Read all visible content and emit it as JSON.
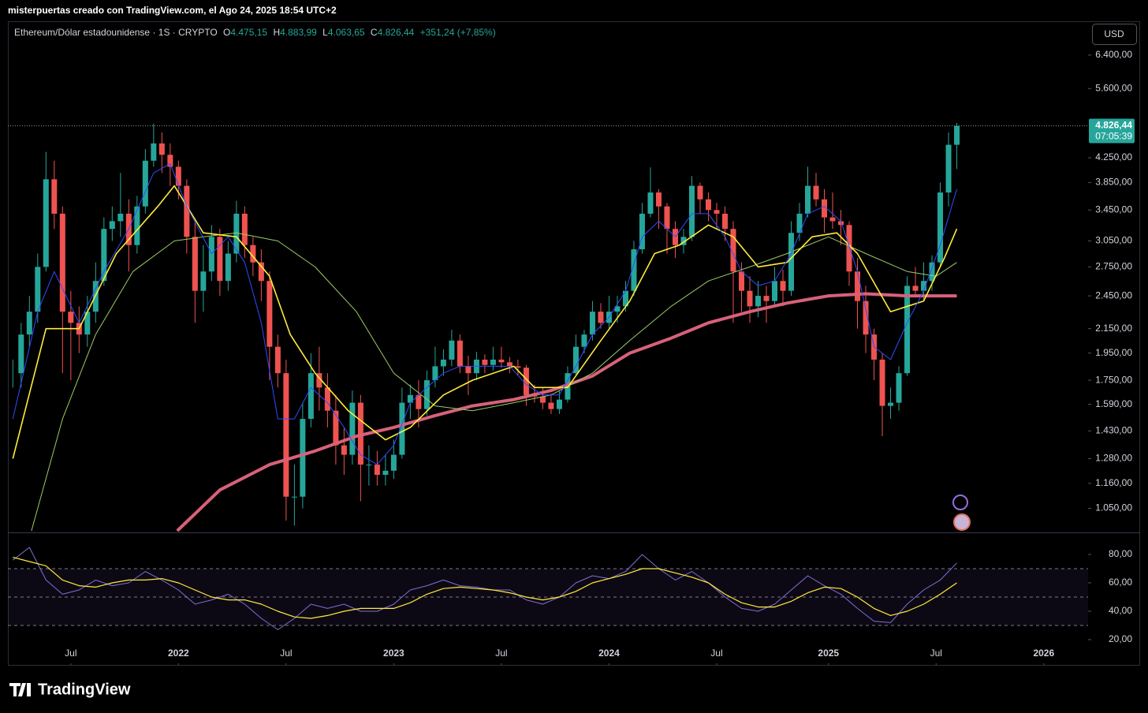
{
  "header": {
    "caption": "misterpuertas creado con TradingView.com, el Ago 24, 2025 18:54 UTC+2"
  },
  "legend": {
    "symbol": "Ethereum/Dólar estadounidense · 1S · CRYPTO",
    "o": "O",
    "open": "4.475,15",
    "h": "H",
    "high": "4.883,99",
    "l": "L",
    "low": "4.063,65",
    "c": "C",
    "close": "4.826,44",
    "change": "+351,24 (+7,85%)"
  },
  "currency": "USD",
  "brand": "TradingView",
  "chart_data": [
    {
      "type": "candlestick",
      "log_scale": true,
      "grid": false,
      "xlim": [
        -15.2,
        245.7
      ],
      "ylim": [
        954,
        7300
      ],
      "yticks": [
        {
          "value": 6400,
          "label": "6.400,00"
        },
        {
          "value": 5600,
          "label": "5.600,00"
        },
        {
          "value": 4250,
          "label": "4.250,00"
        },
        {
          "value": 3850,
          "label": "3.850,00"
        },
        {
          "value": 3450,
          "label": "3.450,00"
        },
        {
          "value": 3050,
          "label": "3.050,00"
        },
        {
          "value": 2750,
          "label": "2.750,00"
        },
        {
          "value": 2450,
          "label": "2.450,00"
        },
        {
          "value": 2150,
          "label": "2.150,00"
        },
        {
          "value": 1950,
          "label": "1.950,00"
        },
        {
          "value": 1750,
          "label": "1.750,00"
        },
        {
          "value": 1590,
          "label": "1.590,00"
        },
        {
          "value": 1430,
          "label": "1.430,00"
        },
        {
          "value": 1280,
          "label": "1.280,00"
        },
        {
          "value": 1160,
          "label": "1.160,00"
        },
        {
          "value": 1050,
          "label": "1.050,00"
        }
      ],
      "last_price": {
        "value": 4826.44,
        "label": "4.826,44"
      },
      "countdown": "07:05:39",
      "up_color": "#26a69a",
      "down_color": "#ef5350",
      "candles": {
        "x": [
          -14,
          -12,
          -10,
          -8,
          -6,
          -4,
          -2,
          0,
          2,
          4,
          6,
          8,
          10,
          12,
          14,
          16,
          18,
          20,
          22,
          24,
          26,
          28,
          30,
          32,
          34,
          36,
          38,
          40,
          42,
          44,
          46,
          48,
          50,
          52,
          54,
          56,
          58,
          60,
          62,
          64,
          66,
          68,
          70,
          72,
          74,
          76,
          78,
          80,
          82,
          84,
          86,
          88,
          90,
          92,
          94,
          96,
          98,
          100,
          102,
          104,
          106,
          108,
          110,
          112,
          114,
          116,
          118,
          120,
          122,
          124,
          126,
          128,
          130,
          132,
          134,
          136,
          138,
          140,
          142,
          144,
          146,
          148,
          150,
          152,
          154,
          156,
          158,
          160,
          162,
          164,
          166,
          168,
          170,
          172,
          174,
          176,
          178,
          180,
          182,
          184,
          186,
          188,
          190,
          192,
          194,
          196,
          198,
          200,
          202,
          204,
          206,
          208,
          210,
          212,
          214
        ],
        "close": [
          1800,
          2100,
          2300,
          2750,
          3900,
          3400,
          2300,
          2200,
          2100,
          2300,
          2600,
          3200,
          3300,
          3400,
          3000,
          3500,
          4200,
          4500,
          4300,
          4100,
          3800,
          3100,
          2500,
          2700,
          3100,
          2600,
          2900,
          3400,
          3000,
          2800,
          2600,
          2000,
          1800,
          1100,
          1100,
          1500,
          1800,
          1700,
          1550,
          1350,
          1300,
          1600,
          1250,
          1250,
          1200,
          1220,
          1300,
          1600,
          1650,
          1560,
          1750,
          1850,
          1900,
          2050,
          1850,
          1800,
          1900,
          1860,
          1900,
          1880,
          1850,
          1840,
          1650,
          1640,
          1600,
          1560,
          1620,
          1800,
          2000,
          2100,
          2300,
          2200,
          2300,
          2350,
          2500,
          2950,
          3400,
          3700,
          3500,
          3200,
          3000,
          3100,
          3800,
          3600,
          3450,
          3400,
          3200,
          2700,
          2500,
          2350,
          2450,
          2400,
          2600,
          2500,
          3150,
          3400,
          3800,
          3600,
          3350,
          3300,
          3250,
          2700,
          2400,
          2100,
          1900,
          1580,
          1600,
          1800,
          2550,
          2500,
          2600,
          2800,
          3700,
          4475.15,
          4826.44
        ],
        "high": [
          1900,
          2200,
          2450,
          2900,
          4350,
          4200,
          3500,
          2500,
          2350,
          2450,
          2800,
          3350,
          3500,
          4000,
          3600,
          3650,
          4400,
          4870,
          4700,
          4500,
          4200,
          3900,
          3300,
          3000,
          3250,
          3200,
          3050,
          3580,
          3500,
          3100,
          2950,
          2700,
          2100,
          1900,
          1250,
          1600,
          1950,
          2000,
          1800,
          1650,
          1450,
          1680,
          1650,
          1350,
          1320,
          1300,
          1380,
          1700,
          1720,
          1750,
          1820,
          2000,
          1980,
          2140,
          2100,
          1930,
          1960,
          1940,
          2000,
          2000,
          1920,
          1900,
          1860,
          1720,
          1700,
          1660,
          1680,
          1850,
          2100,
          2140,
          2400,
          2380,
          2450,
          2450,
          2600,
          3050,
          3550,
          4090,
          3750,
          3550,
          3300,
          3200,
          3950,
          3850,
          3700,
          3550,
          3500,
          3300,
          2800,
          2650,
          2600,
          2550,
          2750,
          2720,
          3300,
          3550,
          4100,
          4000,
          3750,
          3700,
          3450,
          3300,
          2850,
          2550,
          2150,
          1950,
          1700,
          1850,
          2650,
          2750,
          2800,
          2880,
          3850,
          4700,
          4883.99
        ],
        "low": [
          1700,
          1700,
          2000,
          2200,
          2700,
          3200,
          1800,
          1750,
          1950,
          2000,
          2200,
          2550,
          3050,
          3100,
          2700,
          2900,
          3400,
          4100,
          4000,
          3800,
          3600,
          2900,
          2200,
          2300,
          2600,
          2450,
          2500,
          2800,
          2850,
          2650,
          2400,
          1750,
          1700,
          1000,
          980,
          1050,
          1450,
          1550,
          1450,
          1250,
          1200,
          1250,
          1080,
          1150,
          1150,
          1150,
          1180,
          1280,
          1500,
          1450,
          1520,
          1700,
          1780,
          1850,
          1800,
          1650,
          1750,
          1800,
          1820,
          1840,
          1800,
          1780,
          1580,
          1600,
          1560,
          1530,
          1530,
          1600,
          1780,
          1950,
          2050,
          2150,
          2150,
          2200,
          2300,
          2450,
          2900,
          3350,
          3200,
          2900,
          2850,
          2900,
          3050,
          3400,
          3300,
          3200,
          3050,
          2200,
          2300,
          2200,
          2250,
          2200,
          2350,
          2350,
          2450,
          3050,
          3350,
          3500,
          3150,
          3200,
          3000,
          2550,
          2150,
          1950,
          1750,
          1400,
          1500,
          1550,
          1780,
          2450,
          2400,
          2500,
          2750,
          3500,
          4063.65
        ]
      },
      "series": [
        {
          "color": "#d8617a",
          "width": 4,
          "x": [
            25.7,
            36,
            48,
            59,
            69,
            78,
            88,
            97,
            107,
            116,
            126,
            135,
            145,
            154,
            164,
            173,
            183,
            192,
            202,
            214
          ],
          "values": [
            960,
            1130,
            1250,
            1320,
            1400,
            1450,
            1520,
            1580,
            1620,
            1680,
            1780,
            1950,
            2070,
            2200,
            2300,
            2380,
            2450,
            2470,
            2450,
            2450
          ]
        },
        {
          "color": "#9ccc65",
          "width": 1,
          "x": [
            -9.5,
            -2,
            6,
            15,
            25,
            32,
            40,
            50,
            59,
            69,
            78,
            88,
            97,
            107,
            116,
            126,
            135,
            145,
            154,
            164,
            173,
            183,
            192,
            202,
            209,
            214
          ],
          "values": [
            960,
            1500,
            2100,
            2700,
            3050,
            3100,
            3150,
            3050,
            2750,
            2300,
            1800,
            1580,
            1550,
            1600,
            1650,
            1800,
            2050,
            2350,
            2600,
            2750,
            2900,
            3100,
            2900,
            2700,
            2650,
            2800
          ]
        },
        {
          "color": "#ffeb3b",
          "width": 1.6,
          "x": [
            -14,
            -6,
            2,
            11,
            21,
            25,
            32,
            40,
            48,
            53,
            59,
            67,
            76,
            82,
            90,
            97,
            107,
            112,
            120,
            128,
            135,
            141,
            147,
            154,
            160,
            166,
            173,
            179,
            185,
            190,
            198,
            206,
            211,
            214
          ],
          "values": [
            1280,
            2150,
            2150,
            2900,
            3500,
            3800,
            3150,
            3100,
            2650,
            2100,
            1800,
            1550,
            1380,
            1450,
            1650,
            1750,
            1850,
            1700,
            1700,
            2050,
            2400,
            2900,
            3000,
            3250,
            3100,
            2750,
            2800,
            3100,
            3150,
            2900,
            2300,
            2400,
            2850,
            3200
          ]
        },
        {
          "color": "#2f4cff",
          "width": 1,
          "x": [
            -14,
            -8,
            -4,
            2,
            8,
            14,
            20,
            24,
            28,
            34,
            38,
            42,
            46,
            50,
            54,
            58,
            62,
            66,
            70,
            74,
            78,
            82,
            86,
            90,
            94,
            98,
            102,
            106,
            110,
            114,
            118,
            122,
            126,
            130,
            134,
            138,
            142,
            146,
            150,
            154,
            158,
            162,
            166,
            170,
            174,
            178,
            182,
            186,
            190,
            194,
            198,
            202,
            206,
            210,
            214
          ],
          "values": [
            1500,
            2300,
            2700,
            2200,
            2700,
            3200,
            4000,
            4150,
            3500,
            2900,
            3100,
            2800,
            2200,
            1500,
            1500,
            1700,
            1600,
            1450,
            1300,
            1250,
            1350,
            1600,
            1700,
            1800,
            1850,
            1850,
            1850,
            1850,
            1720,
            1650,
            1650,
            1850,
            2100,
            2250,
            2500,
            3100,
            3300,
            3100,
            3400,
            3400,
            3100,
            2700,
            2550,
            2600,
            2900,
            3400,
            3500,
            3300,
            2700,
            2000,
            1900,
            2200,
            2500,
            3000,
            3750
          ]
        }
      ]
    },
    {
      "type": "line",
      "log_scale": false,
      "xlim": [
        -15.2,
        245.7
      ],
      "ylim": [
        2.2,
        95
      ],
      "yticks": [
        {
          "value": 80,
          "label": "80,00"
        },
        {
          "value": 60,
          "label": "60,00"
        },
        {
          "value": 40,
          "label": "40,00"
        },
        {
          "value": 20,
          "label": "20,00"
        }
      ],
      "xticks": [
        {
          "value": 0,
          "label": "Jul"
        },
        {
          "value": 26,
          "label": "2022"
        },
        {
          "value": 52,
          "label": "Jul"
        },
        {
          "value": 78,
          "label": "2023"
        },
        {
          "value": 104,
          "label": "Jul"
        },
        {
          "value": 130,
          "label": "2024"
        },
        {
          "value": 156,
          "label": "Jul"
        },
        {
          "value": 183,
          "label": "2025"
        },
        {
          "value": 209,
          "label": "Jul"
        },
        {
          "value": 235,
          "label": "2026"
        }
      ],
      "levels": [
        70,
        50,
        30
      ],
      "band_color": "#7e57c2",
      "x": [
        -14,
        -10,
        -6,
        -2,
        2,
        6,
        10,
        14,
        18,
        22,
        26,
        30,
        34,
        38,
        42,
        46,
        50,
        54,
        58,
        62,
        66,
        70,
        74,
        78,
        82,
        86,
        90,
        94,
        98,
        102,
        106,
        110,
        114,
        118,
        122,
        126,
        130,
        134,
        138,
        142,
        146,
        150,
        154,
        158,
        162,
        166,
        170,
        174,
        178,
        182,
        186,
        190,
        194,
        198,
        202,
        206,
        210,
        214
      ],
      "series": [
        {
          "color": "#7e6fd8",
          "width": 1,
          "values": [
            76,
            85,
            62,
            52,
            55,
            62,
            58,
            60,
            68,
            62,
            55,
            45,
            48,
            52,
            45,
            35,
            27,
            35,
            45,
            42,
            45,
            40,
            40,
            45,
            55,
            58,
            62,
            58,
            57,
            55,
            55,
            48,
            45,
            50,
            60,
            65,
            63,
            68,
            80,
            70,
            62,
            68,
            60,
            50,
            42,
            40,
            45,
            55,
            65,
            58,
            52,
            42,
            33,
            32,
            45,
            55,
            62,
            74
          ]
        },
        {
          "color": "#ffeb3b",
          "width": 1.2,
          "values": [
            78,
            75,
            72,
            62,
            58,
            57,
            60,
            62,
            62,
            63,
            60,
            55,
            50,
            48,
            48,
            45,
            40,
            36,
            35,
            37,
            40,
            42,
            42,
            42,
            46,
            52,
            56,
            57,
            56,
            55,
            53,
            50,
            48,
            50,
            54,
            60,
            63,
            66,
            70,
            70,
            67,
            64,
            60,
            52,
            46,
            43,
            43,
            47,
            53,
            57,
            56,
            50,
            42,
            37,
            40,
            45,
            52,
            60
          ]
        }
      ]
    }
  ]
}
